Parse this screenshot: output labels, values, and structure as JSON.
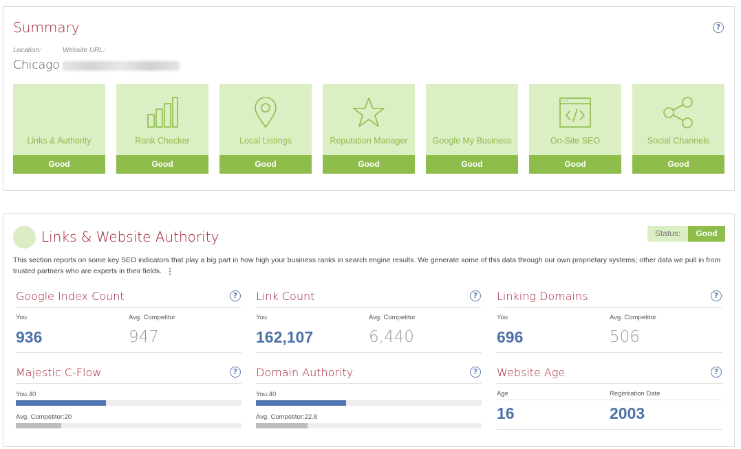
{
  "summary": {
    "title": "Summary",
    "location_label": "Location:",
    "location_value": "Chicago",
    "url_label": "Website URL:",
    "cards": [
      {
        "label": "Links & Authority",
        "status": "Good",
        "icon": "blank"
      },
      {
        "label": "Rank Checker",
        "status": "Good",
        "icon": "bar-chart-icon"
      },
      {
        "label": "Local Listings",
        "status": "Good",
        "icon": "map-pin-icon"
      },
      {
        "label": "Reputation Manager",
        "status": "Good",
        "icon": "star-icon"
      },
      {
        "label": "Google My Business",
        "status": "Good",
        "icon": "blank"
      },
      {
        "label": "On-Site SEO",
        "status": "Good",
        "icon": "code-window-icon"
      },
      {
        "label": "Social Channels",
        "status": "Good",
        "icon": "share-icon"
      }
    ]
  },
  "links": {
    "title": "Links & Website Authority",
    "status_label": "Status:",
    "status_value": "Good",
    "description": "This section reports on some key SEO indicators that play a big part in how high your business ranks in search engine results. We generate some of this data through our own proprietary systems; other data we pull in from trusted partners who are experts in their fields.",
    "metrics": {
      "google_index": {
        "title": "Google Index Count",
        "you_label": "You",
        "comp_label": "Avg. Competitor",
        "you": "936",
        "comp": "947"
      },
      "link_count": {
        "title": "Link Count",
        "you_label": "You",
        "comp_label": "Avg. Competitor",
        "you": "162,107",
        "comp": "6,440"
      },
      "linking_domains": {
        "title": "Linking Domains",
        "you_label": "You",
        "comp_label": "Avg. Competitor",
        "you": "696",
        "comp": "506"
      },
      "majestic": {
        "title": "Majestic C-Flow",
        "you_label": "You:40",
        "comp_label": "Avg. Competitor:20",
        "you_value": 40,
        "comp_value": 20,
        "max": 100
      },
      "domain_authority": {
        "title": "Domain Authority",
        "you_label": "You:40",
        "comp_label": "Avg. Competitor:22.8",
        "you_value": 40,
        "comp_value": 22.8,
        "max": 100
      },
      "website_age": {
        "title": "Website Age",
        "age_label": "Age",
        "reg_label": "Registration Date",
        "age": "16",
        "reg": "2003"
      }
    }
  },
  "colors": {
    "accent_red": "#a11b2e",
    "good_green": "#8fbd4c",
    "light_green": "#dceec4",
    "you_blue": "#4d72a8"
  }
}
